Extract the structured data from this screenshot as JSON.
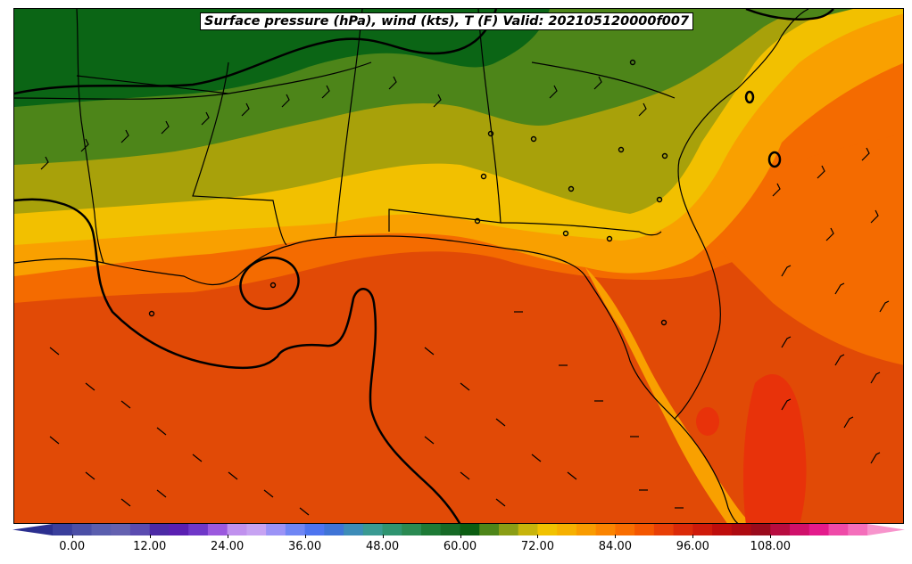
{
  "title": "Surface pressure (hPa), wind (kts), T (F) Valid: 202105120000f007",
  "colorbar": {
    "ticks": [
      "0.00",
      "12.00",
      "24.00",
      "36.00",
      "48.00",
      "60.00",
      "72.00",
      "84.00",
      "96.00",
      "108.00"
    ],
    "min": -6,
    "max": 123,
    "step": 3,
    "colors": [
      "#2b2f8f",
      "#3a3f9c",
      "#4b4fa6",
      "#5a5eae",
      "#6461b0",
      "#5a4bb0",
      "#4c2aa6",
      "#5a1fb2",
      "#6f37c8",
      "#9b59de",
      "#c091ee",
      "#c7a3f2",
      "#9b93f6",
      "#6f86f4",
      "#4d74ef",
      "#3f74d6",
      "#3d8cb8",
      "#3a9a92",
      "#2f9470",
      "#2a8a52",
      "#1d7a36",
      "#166a26",
      "#0b5d12",
      "#4d8519",
      "#8a9d15",
      "#c7b40b",
      "#f1c200",
      "#f6b000",
      "#f99b00",
      "#fb8400",
      "#f96d00",
      "#f45600",
      "#e83f06",
      "#db2a08",
      "#cf1a0a",
      "#bf0d0c",
      "#ae0a10",
      "#9a0a1c",
      "#b80c40",
      "#d0106a",
      "#e41b8c",
      "#ef4aa8",
      "#f46fbb",
      "#f794cc"
    ]
  }
}
